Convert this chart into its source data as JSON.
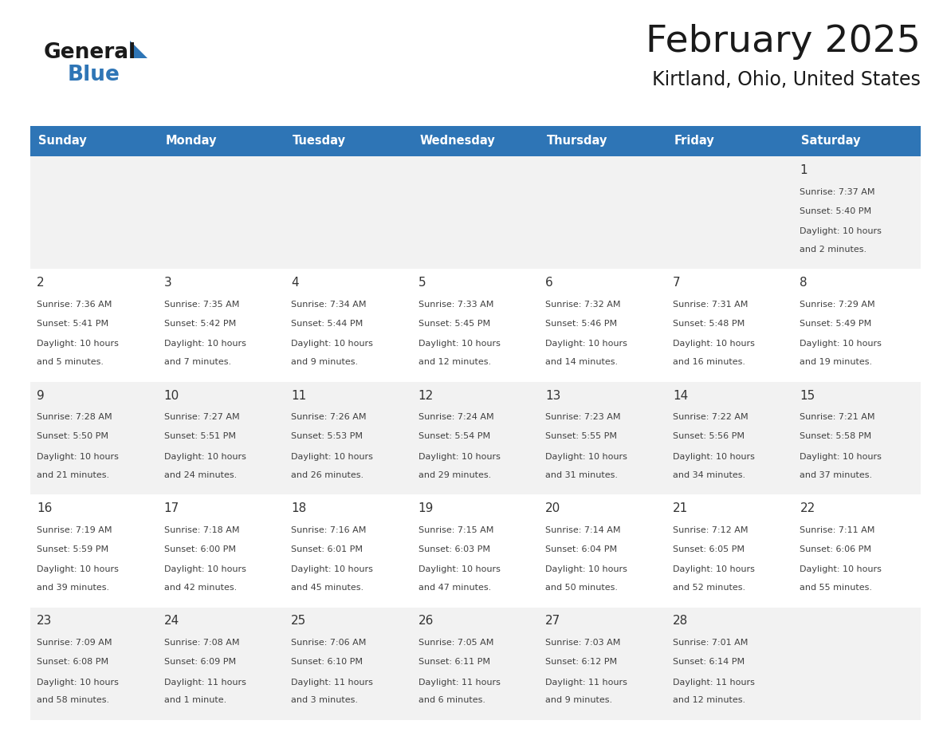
{
  "title": "February 2025",
  "subtitle": "Kirtland, Ohio, United States",
  "header_bg": "#2E75B6",
  "header_text_color": "#FFFFFF",
  "cell_bg_odd": "#F2F2F2",
  "cell_bg_even": "#FFFFFF",
  "day_names": [
    "Sunday",
    "Monday",
    "Tuesday",
    "Wednesday",
    "Thursday",
    "Friday",
    "Saturday"
  ],
  "separator_color": "#2E75B6",
  "text_color": "#404040",
  "day_num_color": "#333333",
  "calendar": [
    [
      null,
      null,
      null,
      null,
      null,
      null,
      {
        "day": 1,
        "sunrise": "7:37 AM",
        "sunset": "5:40 PM",
        "daylight": "10 hours and 2 minutes."
      }
    ],
    [
      {
        "day": 2,
        "sunrise": "7:36 AM",
        "sunset": "5:41 PM",
        "daylight": "10 hours and 5 minutes."
      },
      {
        "day": 3,
        "sunrise": "7:35 AM",
        "sunset": "5:42 PM",
        "daylight": "10 hours and 7 minutes."
      },
      {
        "day": 4,
        "sunrise": "7:34 AM",
        "sunset": "5:44 PM",
        "daylight": "10 hours and 9 minutes."
      },
      {
        "day": 5,
        "sunrise": "7:33 AM",
        "sunset": "5:45 PM",
        "daylight": "10 hours and 12 minutes."
      },
      {
        "day": 6,
        "sunrise": "7:32 AM",
        "sunset": "5:46 PM",
        "daylight": "10 hours and 14 minutes."
      },
      {
        "day": 7,
        "sunrise": "7:31 AM",
        "sunset": "5:48 PM",
        "daylight": "10 hours and 16 minutes."
      },
      {
        "day": 8,
        "sunrise": "7:29 AM",
        "sunset": "5:49 PM",
        "daylight": "10 hours and 19 minutes."
      }
    ],
    [
      {
        "day": 9,
        "sunrise": "7:28 AM",
        "sunset": "5:50 PM",
        "daylight": "10 hours and 21 minutes."
      },
      {
        "day": 10,
        "sunrise": "7:27 AM",
        "sunset": "5:51 PM",
        "daylight": "10 hours and 24 minutes."
      },
      {
        "day": 11,
        "sunrise": "7:26 AM",
        "sunset": "5:53 PM",
        "daylight": "10 hours and 26 minutes."
      },
      {
        "day": 12,
        "sunrise": "7:24 AM",
        "sunset": "5:54 PM",
        "daylight": "10 hours and 29 minutes."
      },
      {
        "day": 13,
        "sunrise": "7:23 AM",
        "sunset": "5:55 PM",
        "daylight": "10 hours and 31 minutes."
      },
      {
        "day": 14,
        "sunrise": "7:22 AM",
        "sunset": "5:56 PM",
        "daylight": "10 hours and 34 minutes."
      },
      {
        "day": 15,
        "sunrise": "7:21 AM",
        "sunset": "5:58 PM",
        "daylight": "10 hours and 37 minutes."
      }
    ],
    [
      {
        "day": 16,
        "sunrise": "7:19 AM",
        "sunset": "5:59 PM",
        "daylight": "10 hours and 39 minutes."
      },
      {
        "day": 17,
        "sunrise": "7:18 AM",
        "sunset": "6:00 PM",
        "daylight": "10 hours and 42 minutes."
      },
      {
        "day": 18,
        "sunrise": "7:16 AM",
        "sunset": "6:01 PM",
        "daylight": "10 hours and 45 minutes."
      },
      {
        "day": 19,
        "sunrise": "7:15 AM",
        "sunset": "6:03 PM",
        "daylight": "10 hours and 47 minutes."
      },
      {
        "day": 20,
        "sunrise": "7:14 AM",
        "sunset": "6:04 PM",
        "daylight": "10 hours and 50 minutes."
      },
      {
        "day": 21,
        "sunrise": "7:12 AM",
        "sunset": "6:05 PM",
        "daylight": "10 hours and 52 minutes."
      },
      {
        "day": 22,
        "sunrise": "7:11 AM",
        "sunset": "6:06 PM",
        "daylight": "10 hours and 55 minutes."
      }
    ],
    [
      {
        "day": 23,
        "sunrise": "7:09 AM",
        "sunset": "6:08 PM",
        "daylight": "10 hours and 58 minutes."
      },
      {
        "day": 24,
        "sunrise": "7:08 AM",
        "sunset": "6:09 PM",
        "daylight": "11 hours and 1 minute."
      },
      {
        "day": 25,
        "sunrise": "7:06 AM",
        "sunset": "6:10 PM",
        "daylight": "11 hours and 3 minutes."
      },
      {
        "day": 26,
        "sunrise": "7:05 AM",
        "sunset": "6:11 PM",
        "daylight": "11 hours and 6 minutes."
      },
      {
        "day": 27,
        "sunrise": "7:03 AM",
        "sunset": "6:12 PM",
        "daylight": "11 hours and 9 minutes."
      },
      {
        "day": 28,
        "sunrise": "7:01 AM",
        "sunset": "6:14 PM",
        "daylight": "11 hours and 12 minutes."
      },
      null
    ]
  ]
}
